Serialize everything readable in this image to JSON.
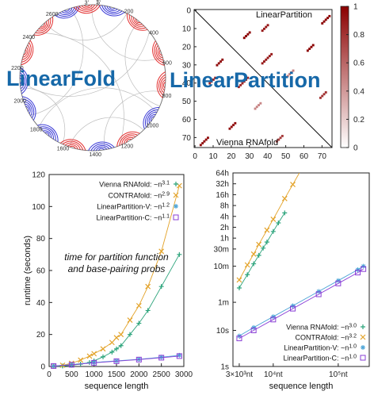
{
  "panel_a": {
    "title": "LinearFold",
    "position_labels": [
      "1",
      "200",
      "400",
      "600",
      "800",
      "1000",
      "1200",
      "1400",
      "1600",
      "1800",
      "2000",
      "2200",
      "2400",
      "2600",
      "3'",
      "5'"
    ],
    "colors": {
      "arc_blue": "#3b3bd6",
      "arc_red": "#e33030",
      "arc_gray": "#bdbdbd"
    }
  },
  "panel_b": {
    "title": "LinearPartition",
    "upper_label": "LinearPartition",
    "lower_label": "Vienna RNAfold",
    "x_ticks": [
      "0",
      "10",
      "20",
      "30",
      "40",
      "50",
      "60",
      "70"
    ],
    "y_ticks": [
      "0",
      "10",
      "20",
      "30",
      "40",
      "50",
      "60",
      "70"
    ],
    "colorbar_ticks": [
      "0",
      "0.2",
      "0.4",
      "0.6",
      "0.8",
      "1"
    ],
    "colors": {
      "high": "#8b0000",
      "low": "#ffffff"
    }
  },
  "chart_data": [
    {
      "type": "scatter",
      "xlabel": "sequence length",
      "ylabel": "runtime (seconds)",
      "xlim": [
        0,
        3000
      ],
      "ylim": [
        0,
        120
      ],
      "x_ticks": [
        "0",
        "500",
        "1000",
        "1500",
        "2000",
        "2500",
        "3000"
      ],
      "y_ticks": [
        "0",
        "20",
        "40",
        "60",
        "80",
        "100",
        "120"
      ],
      "annotation": [
        "time for partition function",
        "and base-pairing probs"
      ],
      "legend_position": "top-right",
      "series": [
        {
          "name": "Vienna RNAfold: ~n",
          "exp": "3.1",
          "color": "#2aa37a",
          "marker": "plus",
          "x": [
            100,
            300,
            500,
            700,
            900,
            1000,
            1200,
            1400,
            1500,
            1600,
            1800,
            2000,
            2200,
            2500,
            2900
          ],
          "y": [
            0.1,
            0.3,
            0.8,
            1.5,
            2.5,
            3.5,
            6,
            9,
            11,
            13,
            20,
            27,
            35,
            50,
            70
          ]
        },
        {
          "name": "CONTRAfold: ~n",
          "exp": "2.9",
          "color": "#e3a32a",
          "marker": "x",
          "x": [
            100,
            300,
            500,
            700,
            900,
            1000,
            1200,
            1400,
            1500,
            1600,
            1800,
            2000,
            2200,
            2500,
            2900
          ],
          "y": [
            0.2,
            0.8,
            2,
            4,
            6.5,
            8,
            11,
            15,
            18,
            20,
            29,
            38,
            50,
            72,
            113
          ]
        },
        {
          "name": "LinearPartition-V: ~n",
          "exp": "1.2",
          "color": "#4aa3d6",
          "marker": "star",
          "x": [
            100,
            500,
            1000,
            1500,
            2000,
            2500,
            2900
          ],
          "y": [
            0.3,
            1.2,
            2.5,
            3.5,
            4.5,
            5.8,
            7
          ]
        },
        {
          "name": "LinearPartition-C: ~n",
          "exp": "1.1",
          "color": "#8a3fd6",
          "marker": "square",
          "x": [
            100,
            500,
            1000,
            1500,
            2000,
            2500,
            2900
          ],
          "y": [
            0.3,
            1.1,
            2.3,
            3.3,
            4.3,
            5.5,
            6.5
          ]
        }
      ]
    },
    {
      "type": "line",
      "xlabel": "sequence length",
      "ylabel": "",
      "xscale": "log",
      "yscale": "log",
      "xlim": [
        2400,
        300000
      ],
      "ylim": [
        1,
        230400
      ],
      "x_ticks": [
        {
          "label": "3×10³nt",
          "value": 3000
        },
        {
          "label": "10⁴nt",
          "value": 10000
        },
        {
          "label": "10⁵nt",
          "value": 100000
        }
      ],
      "y_ticks": [
        {
          "label": "1s",
          "value": 1
        },
        {
          "label": "10s",
          "value": 10
        },
        {
          "label": "1m",
          "value": 60
        },
        {
          "label": "10m",
          "value": 600
        },
        {
          "label": "30m",
          "value": 1800
        },
        {
          "label": "1h",
          "value": 3600
        },
        {
          "label": "2h",
          "value": 7200
        },
        {
          "label": "4h",
          "value": 14400
        },
        {
          "label": "8h",
          "value": 28800
        },
        {
          "label": "16h",
          "value": 57600
        },
        {
          "label": "32h",
          "value": 115200
        },
        {
          "label": "64h",
          "value": 230400
        }
      ],
      "legend_position": "bottom-right",
      "series": [
        {
          "name": "Vienna RNAfold: ~n",
          "exp": "3.0",
          "color": "#2aa37a",
          "marker": "plus",
          "x": [
            3000,
            4000,
            5000,
            6000,
            7000,
            8000,
            10000,
            12000,
            15000
          ],
          "y": [
            150,
            350,
            700,
            1200,
            1900,
            2800,
            5500,
            9500,
            18000
          ]
        },
        {
          "name": "CONTRAfold: ~n",
          "exp": "3.2",
          "color": "#e3a32a",
          "marker": "x",
          "x": [
            3000,
            4000,
            5000,
            6000,
            8000,
            10000,
            15000,
            20000,
            30000
          ],
          "y": [
            250,
            650,
            1300,
            2400,
            6000,
            12000,
            45000,
            110000,
            400000
          ]
        },
        {
          "name": "LinearPartition-V: ~n",
          "exp": "1.0",
          "color": "#4aa3d6",
          "marker": "star",
          "x": [
            3000,
            5000,
            10000,
            20000,
            50000,
            100000,
            200000,
            244000
          ],
          "y": [
            7,
            12,
            24,
            48,
            120,
            240,
            480,
            600
          ]
        },
        {
          "name": "LinearPartition-C: ~n",
          "exp": "1.0",
          "color": "#8a3fd6",
          "marker": "square",
          "x": [
            3000,
            5000,
            10000,
            20000,
            50000,
            100000,
            200000,
            244000
          ],
          "y": [
            6,
            10,
            20,
            40,
            100,
            200,
            400,
            500
          ]
        }
      ]
    }
  ]
}
